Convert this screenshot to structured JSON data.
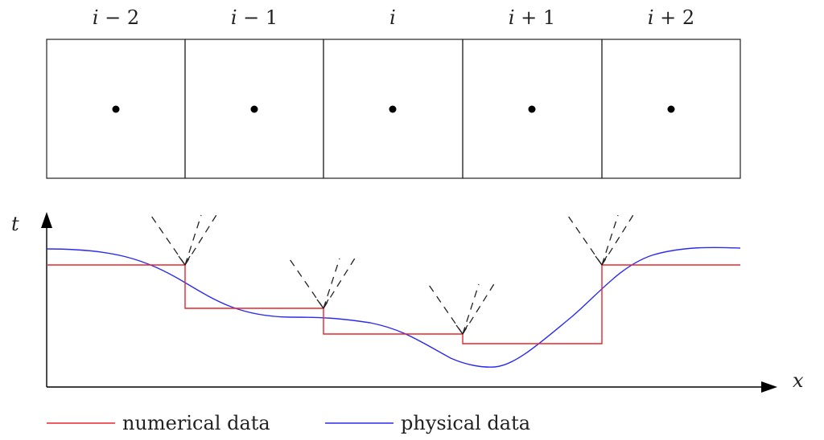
{
  "cells": [
    {
      "index": "i",
      "op": "−",
      "n": "2"
    },
    {
      "index": "i",
      "op": "−",
      "n": "1"
    },
    {
      "index": "i",
      "op": "",
      "n": ""
    },
    {
      "index": "i",
      "op": "+",
      "n": "1"
    },
    {
      "index": "i",
      "op": "+",
      "n": "2"
    }
  ],
  "axes": {
    "t_label": "t",
    "x_label": "x"
  },
  "numerical_levels": [
    330,
    384,
    416,
    428,
    330
  ],
  "legend": [
    {
      "label": "numerical data",
      "color": "#e8262b"
    },
    {
      "label": "physical data",
      "color": "#2b2bef"
    }
  ]
}
